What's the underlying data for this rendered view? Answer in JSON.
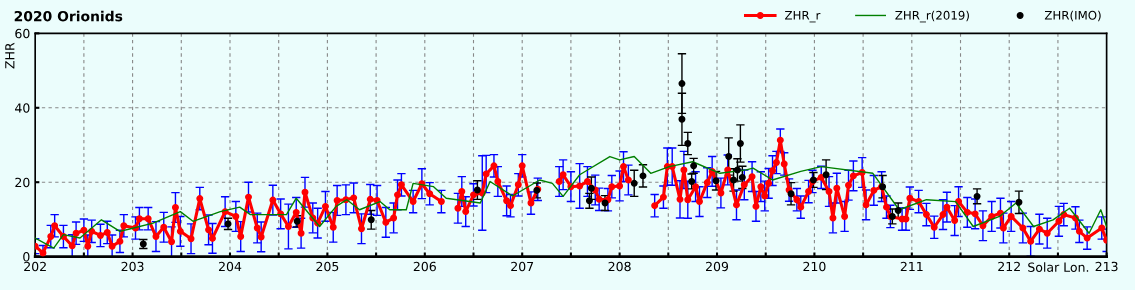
{
  "chart_data": {
    "type": "line",
    "title": "2020 Orionids",
    "ylabel": "ZHR",
    "xlabel": "Solar Lon.",
    "xlim": [
      202,
      213
    ],
    "ylim": [
      0,
      60
    ],
    "xticks": [
      202,
      {
        "value": 202.5,
        "label": null
      },
      203,
      {
        "value": 203.5,
        "label": null
      },
      204,
      {
        "value": 204.5,
        "label": null
      },
      205,
      {
        "value": 205.5,
        "label": null
      },
      206,
      {
        "value": 206.5,
        "label": null
      },
      207,
      {
        "value": 207.5,
        "label": null
      },
      208,
      {
        "value": 208.5,
        "label": null
      },
      209,
      {
        "value": 209.5,
        "label": null
      },
      210,
      {
        "value": 210.5,
        "label": null
      },
      211,
      {
        "value": 211.5,
        "label": null
      },
      212,
      {
        "value": 212.5,
        "label": null
      },
      213
    ],
    "yticks": [
      0,
      20,
      40,
      60
    ],
    "grid": true,
    "legend": "top right",
    "series": [
      {
        "name": "ZHR_r",
        "color": "#ff0000",
        "marker": "circle",
        "x": [
          202.0,
          202.08,
          202.16,
          202.2,
          202.29,
          202.38,
          202.42,
          202.5,
          202.54,
          202.58,
          202.67,
          202.74,
          202.79,
          202.87,
          202.91,
          203.03,
          203.07,
          203.16,
          203.24,
          203.32,
          203.4,
          203.44,
          203.49,
          203.6,
          203.69,
          203.78,
          203.82,
          203.95,
          204.06,
          204.11,
          204.19,
          204.28,
          204.32,
          204.44,
          204.52,
          204.6,
          204.68,
          204.73,
          204.77,
          204.85,
          204.9,
          204.98,
          205.06,
          205.1,
          205.19,
          205.27,
          205.35,
          205.44,
          205.51,
          205.6,
          205.68,
          205.72,
          205.76,
          205.88,
          205.97,
          206.05,
          206.17,
          206.25,
          206.34,
          206.38,
          206.42,
          206.5,
          206.59,
          206.63,
          206.71,
          206.75,
          206.84,
          206.88,
          206.96,
          207.0,
          207.09,
          207.16,
          207.27,
          207.38,
          207.42,
          207.5,
          207.59,
          207.67,
          207.75,
          207.79,
          207.88,
          207.92,
          208.0,
          208.04,
          208.09,
          208.22,
          208.36,
          208.45,
          208.49,
          208.54,
          208.62,
          208.66,
          208.7,
          208.78,
          208.82,
          208.9,
          208.95,
          209.04,
          209.11,
          209.2,
          209.28,
          209.36,
          209.4,
          209.45,
          209.49,
          209.53,
          209.57,
          209.61,
          209.65,
          209.69,
          209.74,
          209.82,
          209.86,
          209.94,
          209.98,
          210.07,
          210.15,
          210.19,
          210.23,
          210.31,
          210.35,
          210.4,
          210.49,
          210.53,
          210.61,
          210.69,
          210.74,
          210.78,
          210.9,
          210.94,
          210.98,
          211.07,
          211.15,
          211.23,
          211.32,
          211.36,
          211.44,
          211.48,
          211.57,
          211.65,
          211.73,
          211.82,
          211.91,
          211.94,
          212.02,
          212.14,
          212.22,
          212.31,
          212.39,
          212.51,
          212.56,
          212.68,
          212.72,
          212.8,
          212.95,
          213.0
        ],
        "values": [
          2.8,
          1.0,
          5.4,
          8.3,
          5.4,
          2.9,
          6.3,
          7.1,
          2.8,
          6.8,
          5.7,
          6.5,
          2.8,
          4.1,
          8.3,
          7.7,
          10.2,
          10.2,
          5.4,
          7.9,
          4.0,
          13.2,
          6.8,
          4.8,
          15.6,
          7.2,
          4.9,
          12.1,
          10.8,
          5.4,
          16.0,
          7.7,
          5.3,
          15.2,
          11.5,
          8.1,
          11.9,
          6.3,
          17.3,
          10.4,
          9.0,
          13.5,
          7.9,
          15.1,
          15.3,
          15.8,
          7.5,
          15.4,
          15.1,
          9.2,
          10.4,
          16.6,
          19.3,
          14.8,
          19.6,
          16.9,
          14.8,
          null,
          13.0,
          17.5,
          12.1,
          16.6,
          17.1,
          22.2,
          24.4,
          20.2,
          15.0,
          13.7,
          19.3,
          24.4,
          14.4,
          18.1,
          null,
          20.2,
          22.0,
          18.8,
          19.0,
          20.2,
          17.9,
          15.4,
          15.3,
          18.8,
          19.0,
          24.2,
          20.6,
          null,
          13.7,
          16.0,
          24.2,
          24.2,
          15.4,
          23.3,
          15.3,
          18.8,
          14.8,
          19.9,
          22.9,
          17.1,
          23.3,
          13.9,
          19.3,
          21.5,
          13.5,
          18.8,
          16.3,
          19.7,
          23.1,
          25.3,
          31.3,
          24.9,
          17.9,
          15.3,
          13.3,
          17.5,
          20.2,
          21.3,
          17.5,
          10.4,
          18.4,
          10.8,
          19.2,
          21.7,
          22.6,
          13.9,
          17.8,
          18.8,
          13.3,
          10.8,
          10.1,
          10.1,
          15.7,
          14.8,
          11.3,
          7.9,
          11.3,
          13.3,
          9.7,
          14.8,
          11.9,
          11.5,
          8.3,
          10.8,
          11.7,
          7.7,
          10.8,
          7.7,
          4.1,
          7.4,
          6.3,
          9.5,
          11.3,
          10.4,
          6.8,
          5.0,
          7.7,
          4.4
        ],
        "errors": [
          2,
          2,
          3,
          3,
          3,
          3,
          3,
          3,
          3,
          3,
          3,
          3,
          3,
          3,
          3,
          3,
          3,
          3,
          4,
          4,
          4,
          4,
          4,
          4,
          3,
          4,
          4,
          4,
          4,
          4,
          4,
          4,
          4,
          4,
          4,
          6,
          4,
          4,
          4,
          4,
          4,
          4,
          4,
          4,
          4,
          4,
          4,
          4,
          4,
          4,
          4,
          4,
          3,
          3,
          4,
          3,
          3,
          null,
          4,
          4,
          4,
          3,
          10,
          5,
          3,
          4,
          4,
          3,
          3,
          3,
          3,
          3,
          null,
          4,
          4,
          4,
          6,
          4,
          4,
          3,
          3,
          3,
          4,
          4,
          4,
          null,
          3,
          3,
          5,
          5,
          5,
          5,
          5,
          4,
          4,
          4,
          4,
          4,
          4,
          4,
          4,
          4,
          4,
          4,
          4,
          4,
          4,
          3,
          3,
          3,
          3,
          3,
          3,
          3,
          3,
          3,
          4,
          4,
          4,
          4,
          4,
          4,
          4,
          4,
          4,
          4,
          3,
          3,
          3,
          3,
          3,
          3,
          3,
          3,
          4,
          4,
          4,
          4,
          4,
          4,
          4,
          4,
          4,
          4,
          4,
          4,
          4,
          4,
          4,
          4,
          3,
          3,
          3,
          3,
          3,
          3
        ]
      },
      {
        "name": "ZHR_r(2019)",
        "color": "#008000",
        "marker": "none",
        "x": [
          202.0,
          202.19,
          202.29,
          202.46,
          202.68,
          202.87,
          202.98,
          203.21,
          203.49,
          203.62,
          203.9,
          204.1,
          204.21,
          204.58,
          204.68,
          204.92,
          205.09,
          205.2,
          205.33,
          205.54,
          205.64,
          205.81,
          205.88,
          206.09,
          206.22,
          206.57,
          206.67,
          206.9,
          207.18,
          207.31,
          207.42,
          207.59,
          207.9,
          208.0,
          208.15,
          208.32,
          208.51,
          208.75,
          209.03,
          209.3,
          209.37,
          209.57,
          209.86,
          210.07,
          210.6,
          210.87,
          211.15,
          211.45,
          211.63,
          211.9,
          212.07,
          212.25,
          212.45,
          212.62,
          212.82,
          212.94,
          213.0
        ],
        "values": [
          5.0,
          2.3,
          5.9,
          5.0,
          9.9,
          6.8,
          7.5,
          9.0,
          12.1,
          9.5,
          12.1,
          13.3,
          11.3,
          11.3,
          15.7,
          8.1,
          13.5,
          15.3,
          12.6,
          14.8,
          12.6,
          12.6,
          19.7,
          18.8,
          15.7,
          14.4,
          20.2,
          16.3,
          20.6,
          19.7,
          16.2,
          22.0,
          26.9,
          26.0,
          26.9,
          22.4,
          24.2,
          25.5,
          22.4,
          23.3,
          23.8,
          20.6,
          22.9,
          24.2,
          22.4,
          12.6,
          15.3,
          14.8,
          8.1,
          10.8,
          14.4,
          8.1,
          9.9,
          13.0,
          6.3,
          12.6,
          8.1
        ]
      },
      {
        "name": "ZHR(IMO)",
        "type": "scatter",
        "color": "#000000",
        "marker": "circle",
        "x": [
          203.11,
          203.98,
          204.69,
          205.45,
          206.54,
          207.15,
          207.69,
          207.71,
          207.85,
          208.15,
          208.24,
          208.64,
          208.64,
          208.7,
          208.74,
          208.76,
          208.99,
          209.12,
          209.17,
          209.21,
          209.24,
          209.26,
          209.76,
          209.99,
          210.12,
          210.7,
          210.8,
          210.86,
          211.67,
          212.1
        ],
        "values": [
          3.4,
          8.8,
          9.5,
          9.9,
          17.9,
          17.8,
          15.0,
          18.4,
          14.4,
          19.7,
          21.7,
          46.5,
          36.9,
          30.4,
          20.2,
          24.4,
          20.4,
          26.9,
          20.6,
          23.3,
          30.4,
          21.3,
          16.9,
          20.6,
          22.0,
          18.8,
          10.8,
          12.4,
          16.2,
          14.6
        ],
        "errors": [
          1.2,
          1.5,
          1.5,
          2.5,
          2.5,
          2,
          2,
          3,
          2,
          3.5,
          3,
          8,
          7,
          3,
          2,
          2,
          2.5,
          5,
          3,
          3,
          5,
          3,
          3,
          2,
          4,
          3,
          2,
          2,
          2,
          3
        ]
      }
    ]
  }
}
